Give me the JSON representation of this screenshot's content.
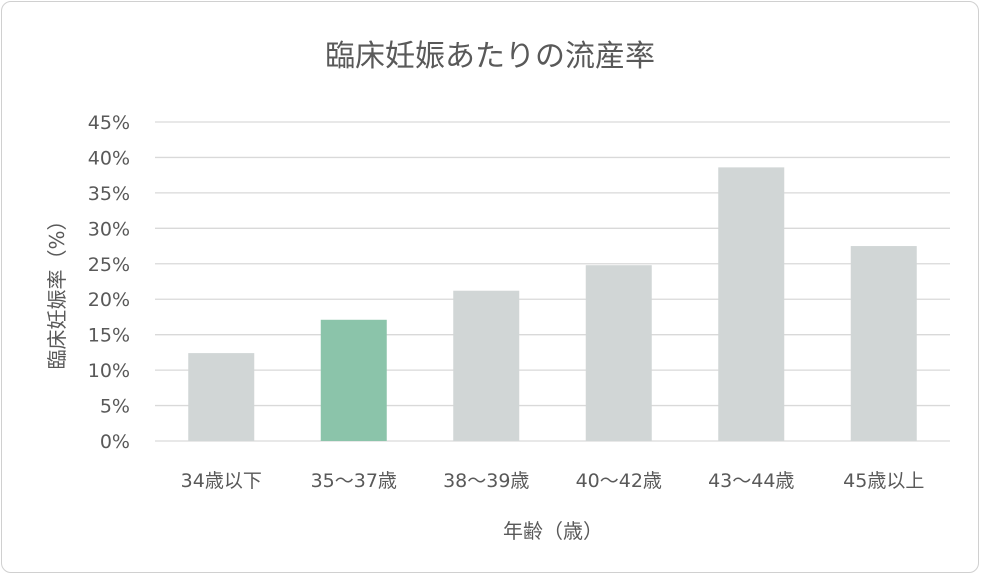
{
  "chart_data": {
    "type": "bar",
    "title": "臨床妊娠あたりの流産率",
    "xlabel": "年齢（歳）",
    "ylabel": "臨床妊娠率（%）",
    "categories": [
      "34歳以下",
      "35〜37歳",
      "38〜39歳",
      "40〜42歳",
      "43〜44歳",
      "45歳以上"
    ],
    "values": [
      12.4,
      17.1,
      21.2,
      24.8,
      38.6,
      27.5
    ],
    "highlight_index": 1,
    "ylim": [
      0,
      45
    ],
    "yticks": [
      0,
      5,
      10,
      15,
      20,
      25,
      30,
      35,
      40,
      45
    ],
    "ytick_labels": [
      "0%",
      "5%",
      "10%",
      "15%",
      "20%",
      "25%",
      "30%",
      "35%",
      "40%",
      "45%"
    ],
    "grid": true,
    "legend": "none",
    "colors": {
      "default": "#d1d6d6",
      "highlight": "#8bc4aa",
      "grid": "#d9d9d9"
    }
  }
}
